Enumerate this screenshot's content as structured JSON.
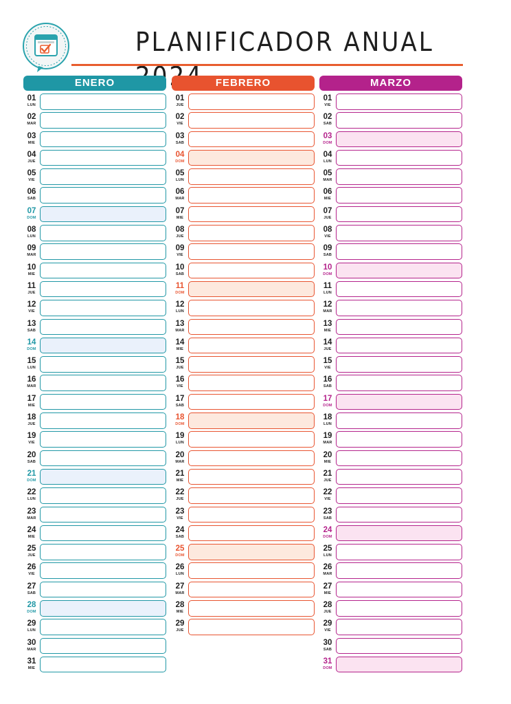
{
  "header": {
    "title": "PLANIFICADOR ANUAL 2024",
    "logo_icon": "calendar-check-icon"
  },
  "months": [
    {
      "id": "enero",
      "name": "ENERO",
      "color": "#1f97a5",
      "sunday_fill": "#eaf1fb",
      "days": [
        {
          "num": "01",
          "day": "LUN"
        },
        {
          "num": "02",
          "day": "MAR"
        },
        {
          "num": "03",
          "day": "MIE"
        },
        {
          "num": "04",
          "day": "JUE"
        },
        {
          "num": "05",
          "day": "VIE"
        },
        {
          "num": "06",
          "day": "SAB"
        },
        {
          "num": "07",
          "day": "DOM",
          "sunday": true
        },
        {
          "num": "08",
          "day": "LUN"
        },
        {
          "num": "09",
          "day": "MAR"
        },
        {
          "num": "10",
          "day": "MIE"
        },
        {
          "num": "11",
          "day": "JUE"
        },
        {
          "num": "12",
          "day": "VIE"
        },
        {
          "num": "13",
          "day": "SAB"
        },
        {
          "num": "14",
          "day": "DOM",
          "sunday": true
        },
        {
          "num": "15",
          "day": "LUN"
        },
        {
          "num": "16",
          "day": "MAR"
        },
        {
          "num": "17",
          "day": "MIE"
        },
        {
          "num": "18",
          "day": "JUE"
        },
        {
          "num": "19",
          "day": "VIE"
        },
        {
          "num": "20",
          "day": "SAB"
        },
        {
          "num": "21",
          "day": "DOM",
          "sunday": true
        },
        {
          "num": "22",
          "day": "LUN"
        },
        {
          "num": "23",
          "day": "MAR"
        },
        {
          "num": "24",
          "day": "MIE"
        },
        {
          "num": "25",
          "day": "JUE"
        },
        {
          "num": "26",
          "day": "VIE"
        },
        {
          "num": "27",
          "day": "SAB"
        },
        {
          "num": "28",
          "day": "DOM",
          "sunday": true
        },
        {
          "num": "29",
          "day": "LUN"
        },
        {
          "num": "30",
          "day": "MAR"
        },
        {
          "num": "31",
          "day": "MIE"
        }
      ]
    },
    {
      "id": "febrero",
      "name": "FEBRERO",
      "color": "#e8532f",
      "sunday_fill": "#fde9de",
      "days": [
        {
          "num": "01",
          "day": "JUE"
        },
        {
          "num": "02",
          "day": "VIE"
        },
        {
          "num": "03",
          "day": "SAB"
        },
        {
          "num": "04",
          "day": "DOM",
          "sunday": true
        },
        {
          "num": "05",
          "day": "LUN"
        },
        {
          "num": "06",
          "day": "MAR"
        },
        {
          "num": "07",
          "day": "MIE"
        },
        {
          "num": "08",
          "day": "JUE"
        },
        {
          "num": "09",
          "day": "VIE"
        },
        {
          "num": "10",
          "day": "SAB"
        },
        {
          "num": "11",
          "day": "DOM",
          "sunday": true
        },
        {
          "num": "12",
          "day": "LUN"
        },
        {
          "num": "13",
          "day": "MAR"
        },
        {
          "num": "14",
          "day": "MIE"
        },
        {
          "num": "15",
          "day": "JUE"
        },
        {
          "num": "16",
          "day": "VIE"
        },
        {
          "num": "17",
          "day": "SAB"
        },
        {
          "num": "18",
          "day": "DOM",
          "sunday": true
        },
        {
          "num": "19",
          "day": "LUN"
        },
        {
          "num": "20",
          "day": "MAR"
        },
        {
          "num": "21",
          "day": "MIE"
        },
        {
          "num": "22",
          "day": "JUE"
        },
        {
          "num": "23",
          "day": "VIE"
        },
        {
          "num": "24",
          "day": "SAB"
        },
        {
          "num": "25",
          "day": "DOM",
          "sunday": true
        },
        {
          "num": "26",
          "day": "LUN"
        },
        {
          "num": "27",
          "day": "MAR"
        },
        {
          "num": "28",
          "day": "MIE"
        },
        {
          "num": "29",
          "day": "JUE"
        }
      ]
    },
    {
      "id": "marzo",
      "name": "MARZO",
      "color": "#b4228b",
      "sunday_fill": "#fbe3f1",
      "days": [
        {
          "num": "01",
          "day": "VIE"
        },
        {
          "num": "02",
          "day": "SAB"
        },
        {
          "num": "03",
          "day": "DOM",
          "sunday": true
        },
        {
          "num": "04",
          "day": "LUN"
        },
        {
          "num": "05",
          "day": "MAR"
        },
        {
          "num": "06",
          "day": "MIE"
        },
        {
          "num": "07",
          "day": "JUE"
        },
        {
          "num": "08",
          "day": "VIE"
        },
        {
          "num": "09",
          "day": "SAB"
        },
        {
          "num": "10",
          "day": "DOM",
          "sunday": true
        },
        {
          "num": "11",
          "day": "LUN"
        },
        {
          "num": "12",
          "day": "MAR"
        },
        {
          "num": "13",
          "day": "MIE"
        },
        {
          "num": "14",
          "day": "JUE"
        },
        {
          "num": "15",
          "day": "VIE"
        },
        {
          "num": "16",
          "day": "SAB"
        },
        {
          "num": "17",
          "day": "DOM",
          "sunday": true
        },
        {
          "num": "18",
          "day": "LUN"
        },
        {
          "num": "19",
          "day": "MAR"
        },
        {
          "num": "20",
          "day": "MIE"
        },
        {
          "num": "21",
          "day": "JUE"
        },
        {
          "num": "22",
          "day": "VIE"
        },
        {
          "num": "23",
          "day": "SAB"
        },
        {
          "num": "24",
          "day": "DOM",
          "sunday": true
        },
        {
          "num": "25",
          "day": "LUN"
        },
        {
          "num": "26",
          "day": "MAR"
        },
        {
          "num": "27",
          "day": "MIE"
        },
        {
          "num": "28",
          "day": "JUE"
        },
        {
          "num": "29",
          "day": "VIE"
        },
        {
          "num": "30",
          "day": "SAB"
        },
        {
          "num": "31",
          "day": "DOM",
          "sunday": true
        }
      ]
    }
  ]
}
